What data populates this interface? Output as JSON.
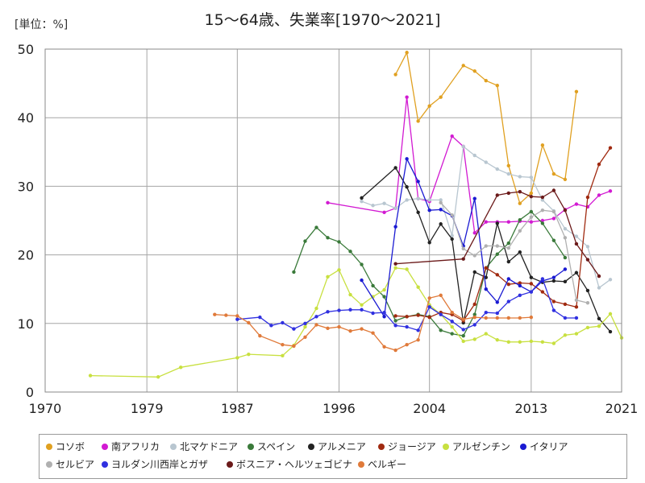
{
  "chart_data": {
    "type": "line",
    "title": "15～64歳、失業率[1970～2021]",
    "unit_label": "[単位：%]",
    "xlabel": "",
    "ylabel": "",
    "xlim": [
      1970,
      2021
    ],
    "ylim": [
      0,
      50
    ],
    "x_ticks": [
      1970,
      1979,
      1987,
      1996,
      2004,
      2013,
      2021
    ],
    "y_ticks": [
      0,
      10,
      20,
      30,
      40,
      50
    ],
    "grid": true,
    "legend_position": "bottom",
    "series": [
      {
        "name": "コソボ",
        "color": "#e0a020",
        "x": [
          2001,
          2002,
          2003,
          2004,
          2005,
          2007,
          2008,
          2009,
          2010,
          2011,
          2012,
          2013,
          2014,
          2015,
          2016,
          2017
        ],
        "y": [
          46.3,
          49.5,
          39.5,
          41.7,
          43.0,
          47.6,
          46.8,
          45.4,
          44.7,
          33.0,
          27.5,
          29.0,
          36.0,
          31.8,
          31.0,
          43.8
        ]
      },
      {
        "name": "南アフリカ",
        "color": "#d21ad2",
        "x": [
          1995,
          2000,
          2001,
          2002,
          2003,
          2004,
          2006,
          2007,
          2008,
          2009,
          2010,
          2011,
          2012,
          2013,
          2014,
          2015,
          2016,
          2017,
          2018,
          2019,
          2020
        ],
        "y": [
          27.6,
          26.2,
          26.8,
          43.0,
          28.2,
          27.8,
          37.3,
          35.8,
          23.2,
          24.8,
          24.8,
          24.8,
          24.9,
          24.8,
          25.0,
          25.3,
          26.6,
          27.4,
          27.0,
          28.7,
          29.3
        ]
      },
      {
        "name": "北マケドニア",
        "color": "#b8c6d0",
        "x": [
          1998,
          1999,
          2000,
          2001,
          2002,
          2003,
          2004,
          2005,
          2006,
          2007,
          2008,
          2009,
          2010,
          2011,
          2012,
          2013,
          2014,
          2015,
          2016,
          2017,
          2018,
          2019,
          2020
        ],
        "y": [
          27.8,
          27.2,
          27.5,
          26.8,
          28.0,
          28.2,
          28.0,
          28.0,
          22.8,
          35.8,
          34.5,
          33.5,
          32.5,
          31.8,
          31.4,
          31.3,
          28.0,
          26.4,
          23.8,
          22.7,
          21.2,
          15.2,
          16.4
        ]
      },
      {
        "name": "スペイン",
        "color": "#3a7a3a",
        "x": [
          1992,
          1993,
          1994,
          1995,
          1996,
          1997,
          1998,
          1999,
          2000,
          2001,
          2002,
          2003,
          2004,
          2005,
          2006,
          2007,
          2008,
          2009,
          2010,
          2011,
          2012,
          2013,
          2014,
          2015,
          2016
        ],
        "y": [
          17.5,
          22.0,
          24.0,
          22.5,
          21.9,
          20.5,
          18.6,
          15.5,
          13.9,
          10.4,
          11.0,
          11.3,
          11.0,
          9.0,
          8.5,
          8.2,
          11.3,
          18.1,
          20.1,
          21.7,
          25.1,
          26.3,
          24.6,
          22.1,
          19.6
        ]
      },
      {
        "name": "アルメニア",
        "color": "#222222",
        "x": [
          1998,
          2001,
          2002,
          2003,
          2004,
          2005,
          2006,
          2007,
          2008,
          2009,
          2010,
          2011,
          2012,
          2013,
          2014,
          2015,
          2016,
          2017,
          2018,
          2019,
          2020
        ],
        "y": [
          28.3,
          32.7,
          29.9,
          26.2,
          21.8,
          24.5,
          22.3,
          10.1,
          17.5,
          16.7,
          24.6,
          19.0,
          20.4,
          16.7,
          16.0,
          16.2,
          16.1,
          17.4,
          14.8,
          10.7,
          8.8
        ]
      },
      {
        "name": "ジョージア",
        "color": "#a02a10",
        "x": [
          2001,
          2002,
          2003,
          2004,
          2005,
          2006,
          2007,
          2008,
          2009,
          2010,
          2011,
          2012,
          2013,
          2014,
          2015,
          2016,
          2017,
          2018,
          2019,
          2020
        ],
        "y": [
          11.1,
          11.0,
          11.2,
          10.9,
          11.6,
          11.3,
          10.4,
          12.8,
          18.1,
          17.1,
          15.7,
          15.9,
          15.8,
          14.6,
          13.2,
          12.8,
          12.4,
          28.4,
          33.2,
          35.6
        ]
      },
      {
        "name": "アルゼンチン",
        "color": "#c8e040",
        "x": [
          1974,
          1980,
          1982,
          1987,
          1988,
          1991,
          1992,
          1993,
          1994,
          1995,
          1996,
          1997,
          1998,
          1999,
          2000,
          2001,
          2002,
          2003,
          2004,
          2005,
          2006,
          2007,
          2008,
          2009,
          2010,
          2011,
          2012,
          2013,
          2014,
          2015,
          2016,
          2017,
          2018,
          2019,
          2020,
          2021
        ],
        "y": [
          2.4,
          2.2,
          3.6,
          5.0,
          5.5,
          5.3,
          6.8,
          9.5,
          12.2,
          16.8,
          17.8,
          14.2,
          12.7,
          13.9,
          14.9,
          18.1,
          17.9,
          15.3,
          12.7,
          11.3,
          9.5,
          7.4,
          7.7,
          8.5,
          7.6,
          7.3,
          7.3,
          7.4,
          7.3,
          7.1,
          8.3,
          8.5,
          9.4,
          9.6,
          11.4,
          7.9
        ]
      },
      {
        "name": "イタリア",
        "color": "#1a1ad2",
        "x": [
          1998,
          2000,
          2001,
          2002,
          2003,
          2004,
          2005,
          2006,
          2007,
          2008,
          2009,
          2010,
          2011,
          2012,
          2013,
          2014,
          2015,
          2016
        ],
        "y": [
          16.3,
          11.0,
          24.1,
          34.0,
          30.7,
          26.5,
          26.6,
          25.7,
          21.3,
          28.2,
          15.0,
          13.1,
          16.5,
          15.5,
          14.6,
          16.2,
          16.7,
          17.9
        ]
      },
      {
        "name": "セルビア",
        "color": "#b0b0b0",
        "x": [
          2005,
          2006,
          2007,
          2008,
          2009,
          2010,
          2011,
          2012,
          2013,
          2014,
          2015,
          2016,
          2017,
          2018
        ],
        "y": [
          27.6,
          25.8,
          20.9,
          19.9,
          21.3,
          21.3,
          21.0,
          23.5,
          25.5,
          26.5,
          26.3,
          22.5,
          13.4,
          13.0
        ]
      },
      {
        "name": "ヨルダン川西岸とガザ",
        "color": "#3030e0",
        "x": [
          1987,
          1989,
          1990,
          1991,
          1992,
          1993,
          1994,
          1995,
          1996,
          1997,
          1998,
          1999,
          2000,
          2001,
          2002,
          2003,
          2004,
          2005,
          2006,
          2007,
          2008,
          2009,
          2010,
          2011,
          2012,
          2013,
          2014,
          2015,
          2016,
          2017
        ],
        "y": [
          10.6,
          10.9,
          9.7,
          10.1,
          9.2,
          10.0,
          11.0,
          11.7,
          11.9,
          12.0,
          12.0,
          11.5,
          11.6,
          9.7,
          9.5,
          9.0,
          12.4,
          11.3,
          10.3,
          9.1,
          9.8,
          11.6,
          11.5,
          13.2,
          14.1,
          14.6,
          16.5,
          11.9,
          10.8,
          10.8
        ]
      },
      {
        "name": "ボスニア・ヘルツェゴビナ",
        "color": "#6b1a1a",
        "x": [
          2001,
          2007,
          2010,
          2011,
          2012,
          2013,
          2014,
          2015,
          2016,
          2017,
          2018,
          2019
        ],
        "y": [
          18.7,
          19.4,
          28.7,
          29.0,
          29.2,
          28.5,
          28.4,
          29.4,
          26.5,
          21.6,
          19.3,
          16.9
        ]
      },
      {
        "name": "ベルギー",
        "color": "#e07a3a",
        "x": [
          1985,
          1986,
          1987,
          1988,
          1989,
          1991,
          1992,
          1993,
          1994,
          1995,
          1996,
          1997,
          1998,
          1999,
          2000,
          2001,
          2002,
          2003,
          2004,
          2005,
          2006,
          2007,
          2008,
          2009,
          2010,
          2011,
          2012,
          2013
        ],
        "y": [
          11.3,
          11.2,
          11.1,
          10.1,
          8.2,
          6.9,
          6.7,
          8.0,
          9.8,
          9.3,
          9.5,
          8.9,
          9.2,
          8.6,
          6.6,
          6.1,
          6.9,
          7.6,
          13.7,
          14.1,
          11.6,
          10.6,
          10.9,
          10.8,
          10.8,
          10.8,
          10.8,
          10.9
        ]
      }
    ]
  }
}
